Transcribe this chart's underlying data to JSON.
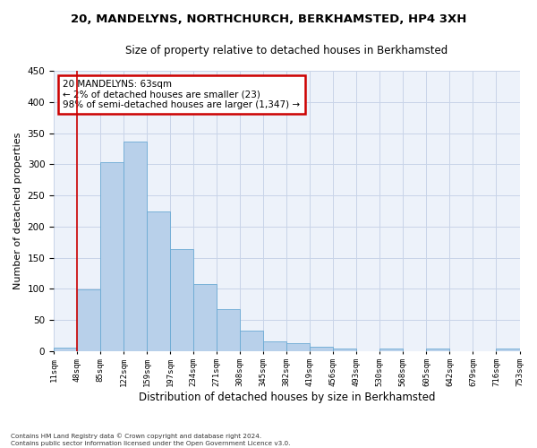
{
  "title_line1": "20, MANDELYNS, NORTHCHURCH, BERKHAMSTED, HP4 3XH",
  "title_line2": "Size of property relative to detached houses in Berkhamsted",
  "xlabel": "Distribution of detached houses by size in Berkhamsted",
  "ylabel": "Number of detached properties",
  "footnote": "Contains HM Land Registry data © Crown copyright and database right 2024.\nContains public sector information licensed under the Open Government Licence v3.0.",
  "bin_labels": [
    "11sqm",
    "48sqm",
    "85sqm",
    "122sqm",
    "159sqm",
    "197sqm",
    "234sqm",
    "271sqm",
    "308sqm",
    "345sqm",
    "382sqm",
    "419sqm",
    "456sqm",
    "493sqm",
    "530sqm",
    "568sqm",
    "605sqm",
    "642sqm",
    "679sqm",
    "716sqm",
    "753sqm"
  ],
  "bar_heights": [
    5,
    99,
    303,
    337,
    224,
    164,
    108,
    67,
    33,
    15,
    13,
    7,
    4,
    0,
    3,
    0,
    4,
    0,
    0,
    3
  ],
  "bar_color": "#b8d0ea",
  "bar_edge_color": "#6aaad4",
  "grid_color": "#c8d4e8",
  "background_color": "#edf2fa",
  "vline_x": 1,
  "vline_color": "#cc0000",
  "annotation_text": "20 MANDELYNS: 63sqm\n← 2% of detached houses are smaller (23)\n98% of semi-detached houses are larger (1,347) →",
  "annotation_box_color": "#cc0000",
  "ylim": [
    0,
    450
  ],
  "yticks": [
    0,
    50,
    100,
    150,
    200,
    250,
    300,
    350,
    400,
    450
  ],
  "title1_fontsize": 9.5,
  "title2_fontsize": 8.5,
  "ylabel_fontsize": 8,
  "xlabel_fontsize": 8.5
}
